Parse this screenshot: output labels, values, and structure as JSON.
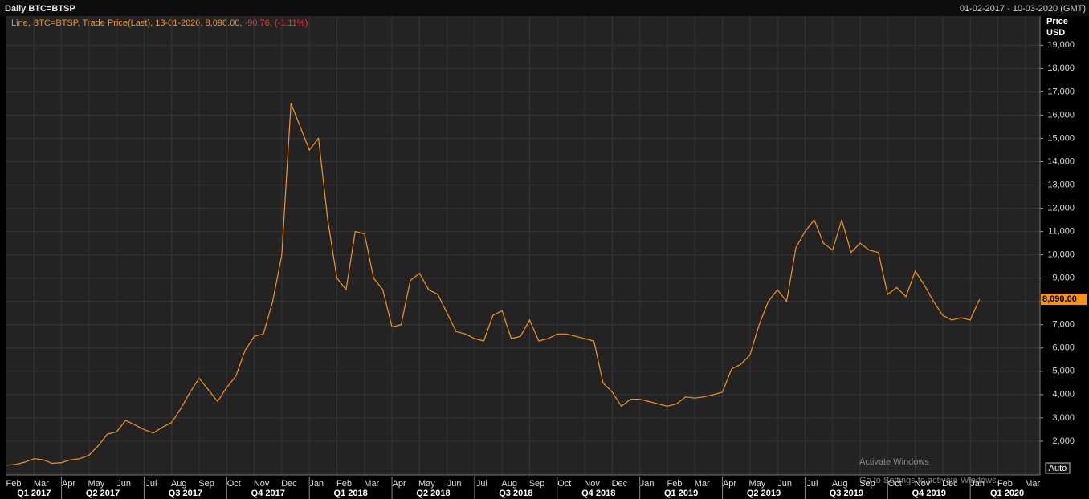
{
  "chart_data": {
    "type": "line",
    "title": "Daily BTC=BTSP",
    "date_range": "01-02-2017 - 10-03-2020 (GMT)",
    "legend": {
      "text": "Line, BTC=BTSP, Trade Price(Last), 13-01-2020, 8,090.00,",
      "change": "-90.76, (-1.11%)"
    },
    "y_axis_label": [
      "Price",
      "USD"
    ],
    "last_value": {
      "value": 8090,
      "label": "8,090.00"
    },
    "scale_button": "Auto",
    "watermark": [
      "Activate Windows",
      "Go to Settings to activate Windows."
    ],
    "color": "#f7931e",
    "grid": true,
    "categories": [
      "Feb",
      null,
      null,
      "Mar",
      null,
      null,
      "Apr",
      null,
      null,
      "May",
      null,
      null,
      "Jun",
      null,
      null,
      "Jul",
      null,
      null,
      "Aug",
      null,
      null,
      "Sep",
      null,
      null,
      "Oct",
      null,
      null,
      "Nov",
      null,
      null,
      "Dec",
      null,
      null,
      "Jan",
      null,
      null,
      "Feb",
      null,
      null,
      "Mar",
      null,
      null,
      "Apr",
      null,
      null,
      "May",
      null,
      null,
      "Jun",
      null,
      null,
      "Jul",
      null,
      null,
      "Aug",
      null,
      null,
      "Sep",
      null,
      null,
      "Oct",
      null,
      null,
      "Nov",
      null,
      null,
      "Dec",
      null,
      null,
      "Jan",
      null,
      null,
      "Feb",
      null,
      null,
      "Mar",
      null,
      null,
      "Apr",
      null,
      null,
      "May",
      null,
      null,
      "Jun",
      null,
      null,
      "Jul",
      null,
      null,
      "Aug",
      null,
      null,
      "Sep",
      null,
      null,
      "Oct",
      null,
      null,
      "Nov",
      null,
      null,
      "Dec",
      null,
      null,
      "Jan",
      null,
      null,
      "Feb",
      null,
      null,
      "Mar",
      null,
      null
    ],
    "values": [
      970,
      1000,
      1100,
      1250,
      1200,
      1050,
      1080,
      1200,
      1250,
      1400,
      1800,
      2300,
      2400,
      2900,
      2700,
      2500,
      2350,
      2600,
      2800,
      3400,
      4100,
      4700,
      4200,
      3700,
      4300,
      4800,
      5900,
      6500,
      6600,
      8000,
      10000,
      16500,
      15500,
      14500,
      15000,
      11500,
      9000,
      8500,
      11000,
      10900,
      9000,
      8500,
      6900,
      7000,
      8900,
      9200,
      8500,
      8300,
      7500,
      6700,
      6600,
      6400,
      6300,
      7400,
      7600,
      6400,
      6500,
      7200,
      6300,
      6400,
      6600,
      6600,
      6500,
      6400,
      6300,
      4500,
      4100,
      3500,
      3800,
      3800,
      3700,
      3600,
      3500,
      3600,
      3900,
      3850,
      3900,
      4000,
      4100,
      5100,
      5300,
      5700,
      7000,
      8000,
      8500,
      8000,
      10300,
      11000,
      11500,
      10500,
      10200,
      11500,
      10100,
      10500,
      10200,
      10100,
      8300,
      8600,
      8200,
      9300,
      8700,
      8000,
      7400,
      7200,
      7300,
      7200,
      8090,
      null,
      null,
      null,
      null,
      null,
      null,
      null
    ],
    "x_groups": [
      "Q1 2017",
      "Q2 2017",
      "Q3 2017",
      "Q4 2017",
      "Q1 2018",
      "Q2 2018",
      "Q3 2018",
      "Q4 2018",
      "Q1 2019",
      "Q2 2019",
      "Q3 2019",
      "Q4 2019",
      "Q1 2020"
    ],
    "ylim": [
      550,
      20250
    ],
    "yticks": [
      {
        "value": 2000,
        "label": "2,000"
      },
      {
        "value": 3000,
        "label": "3,000"
      },
      {
        "value": 4000,
        "label": "4,000"
      },
      {
        "value": 5000,
        "label": "5,000"
      },
      {
        "value": 6000,
        "label": "6,000"
      },
      {
        "value": 7000,
        "label": "7,000"
      },
      {
        "value": 8000,
        "label": "8,000"
      },
      {
        "value": 9000,
        "label": "9,000"
      },
      {
        "value": 10000,
        "label": "10,000"
      },
      {
        "value": 11000,
        "label": "11,000"
      },
      {
        "value": 12000,
        "label": "12,000"
      },
      {
        "value": 13000,
        "label": "13,000"
      },
      {
        "value": 14000,
        "label": "14,000"
      },
      {
        "value": 15000,
        "label": "15,000"
      },
      {
        "value": 16000,
        "label": "16,000"
      },
      {
        "value": 17000,
        "label": "17,000"
      },
      {
        "value": 18000,
        "label": "18,000"
      },
      {
        "value": 19000,
        "label": "19,000"
      }
    ]
  }
}
